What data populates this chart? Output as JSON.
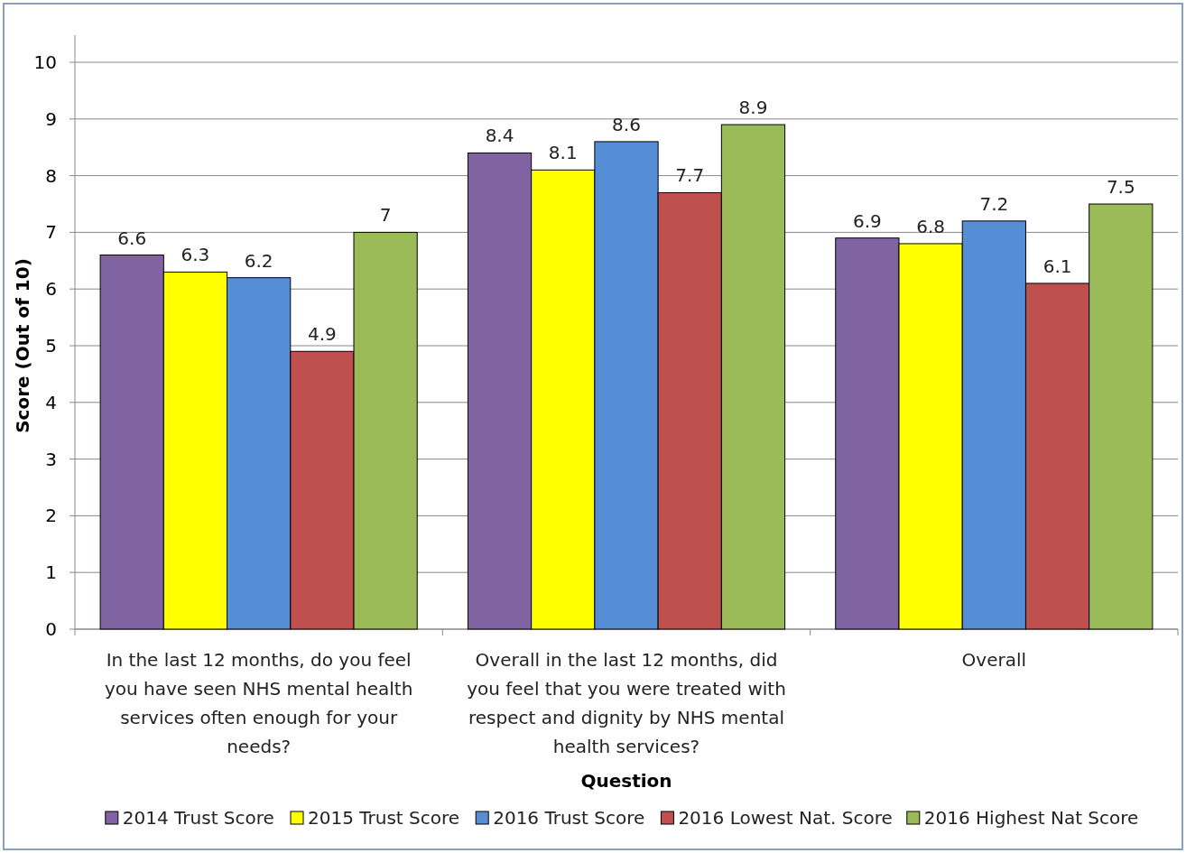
{
  "chart_data": {
    "type": "bar",
    "xlabel": "Question",
    "ylabel": "Score (Out of 10)",
    "categories": [
      "In the last 12 months, do you feel you have seen NHS mental health services often enough for your needs?",
      "Overall in the last 12 months, did you feel that you were treated with respect and dignity by NHS mental health services?",
      "Overall"
    ],
    "series": [
      {
        "name": "2014 Trust Score",
        "color": "#8064a2",
        "values": [
          6.6,
          8.4,
          6.9
        ]
      },
      {
        "name": "2015 Trust Score",
        "color": "#ffff00",
        "values": [
          6.3,
          8.1,
          6.8
        ]
      },
      {
        "name": "2016 Trust Score",
        "color": "#558ed5",
        "values": [
          6.2,
          8.6,
          7.2
        ]
      },
      {
        "name": "2016 Lowest Nat. Score",
        "color": "#c0504d",
        "values": [
          4.9,
          7.7,
          6.1
        ]
      },
      {
        "name": "2016 Highest Nat Score",
        "color": "#9bbb59",
        "values": [
          7,
          8.9,
          7.5
        ]
      }
    ],
    "ylim": [
      0,
      10
    ],
    "yticks": [
      0,
      1,
      2,
      3,
      4,
      5,
      6,
      7,
      8,
      9,
      10
    ],
    "grid": "y",
    "legend": "bottom",
    "data_labels": true
  }
}
